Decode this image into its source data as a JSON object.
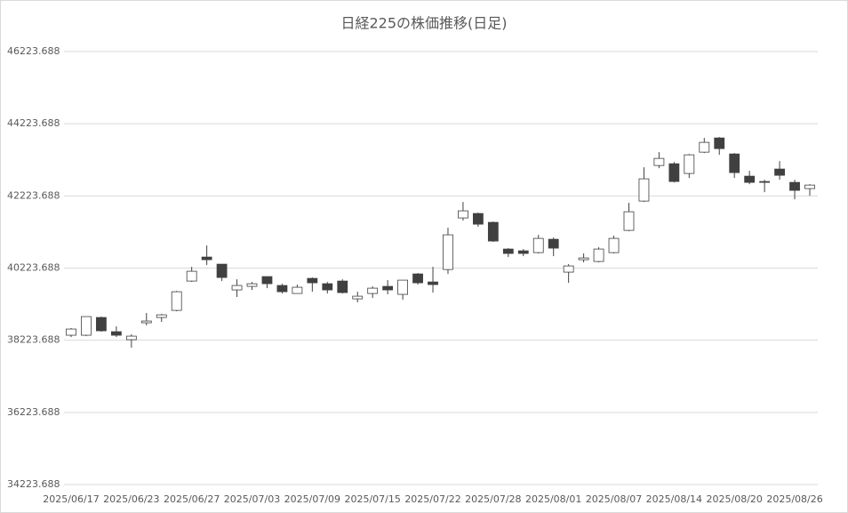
{
  "chart_data": {
    "type": "candlestick",
    "title": "日経225の株価推移(日足)",
    "categories": [
      "2025/06/17",
      null,
      null,
      null,
      "2025/06/23",
      null,
      null,
      null,
      "2025/06/27",
      null,
      null,
      null,
      "2025/07/03",
      null,
      null,
      null,
      "2025/07/09",
      null,
      null,
      null,
      "2025/07/15",
      null,
      null,
      null,
      "2025/07/22",
      null,
      null,
      null,
      "2025/07/28",
      null,
      null,
      null,
      "2025/08/01",
      null,
      null,
      null,
      "2025/08/07",
      null,
      null,
      null,
      "2025/08/14",
      null,
      null,
      null,
      "2025/08/20",
      null,
      null,
      null,
      "2025/08/26",
      null
    ],
    "open": [
      38362,
      38362,
      38854,
      38460,
      38239,
      38707,
      38854,
      39051,
      39864,
      40529,
      40332,
      39618,
      39716,
      39987,
      39741,
      39519,
      39938,
      39790,
      39864,
      39371,
      39519,
      39716,
      39495,
      40061,
      39839,
      40184,
      41613,
      41736,
      41490,
      40751,
      40702,
      40652,
      41022,
      40111,
      40455,
      40406,
      40652,
      41268,
      42081,
      43066,
      43115,
      42845,
      43436,
      43830,
      43386,
      42771,
      42623,
      42968,
      42598,
      42426
    ],
    "high": [
      38559,
      38879,
      38879,
      38608,
      38386,
      38977,
      38953,
      39593,
      40258,
      40849,
      40332,
      39913,
      39839,
      39987,
      39790,
      39766,
      39963,
      39839,
      39913,
      39568,
      39716,
      39889,
      39889,
      40086,
      40258,
      41342,
      42056,
      41761,
      41514,
      40776,
      40751,
      41145,
      41071,
      40332,
      40628,
      40800,
      41120,
      42031,
      43017,
      43436,
      43164,
      43386,
      43830,
      43855,
      43411,
      42918,
      42672,
      43189,
      42672,
      42549
    ],
    "low": [
      38312,
      38337,
      38460,
      38312,
      38017,
      38633,
      38731,
      39026,
      39839,
      40308,
      39864,
      39421,
      39618,
      39667,
      39519,
      39519,
      39568,
      39519,
      39519,
      39273,
      39396,
      39495,
      39347,
      39766,
      39544,
      40061,
      41539,
      41367,
      40948,
      40529,
      40554,
      40628,
      40554,
      39815,
      40381,
      40381,
      40628,
      41244,
      42056,
      42992,
      42598,
      42721,
      43411,
      43362,
      42721,
      42549,
      42327,
      42672,
      42130,
      42229
    ],
    "close": [
      38534,
      38879,
      38485,
      38362,
      38337,
      38756,
      38928,
      39568,
      40135,
      40455,
      39963,
      39741,
      39790,
      39790,
      39568,
      39692,
      39815,
      39618,
      39544,
      39445,
      39667,
      39618,
      39889,
      39815,
      39766,
      41145,
      41810,
      41440,
      40973,
      40628,
      40628,
      41046,
      40776,
      40283,
      40505,
      40751,
      41046,
      41785,
      42697,
      43263,
      42623,
      43362,
      43707,
      43534,
      42869,
      42598,
      42598,
      42795,
      42377,
      42524
    ],
    "up_color": "#ffffff",
    "down_color": "#404040",
    "line_color": "#404040",
    "ylim": [
      34223.688,
      46223.688
    ],
    "yticks": [
      34223.688,
      36223.688,
      38223.688,
      40223.688,
      42223.688,
      44223.688,
      46223.688
    ],
    "grid": true
  }
}
